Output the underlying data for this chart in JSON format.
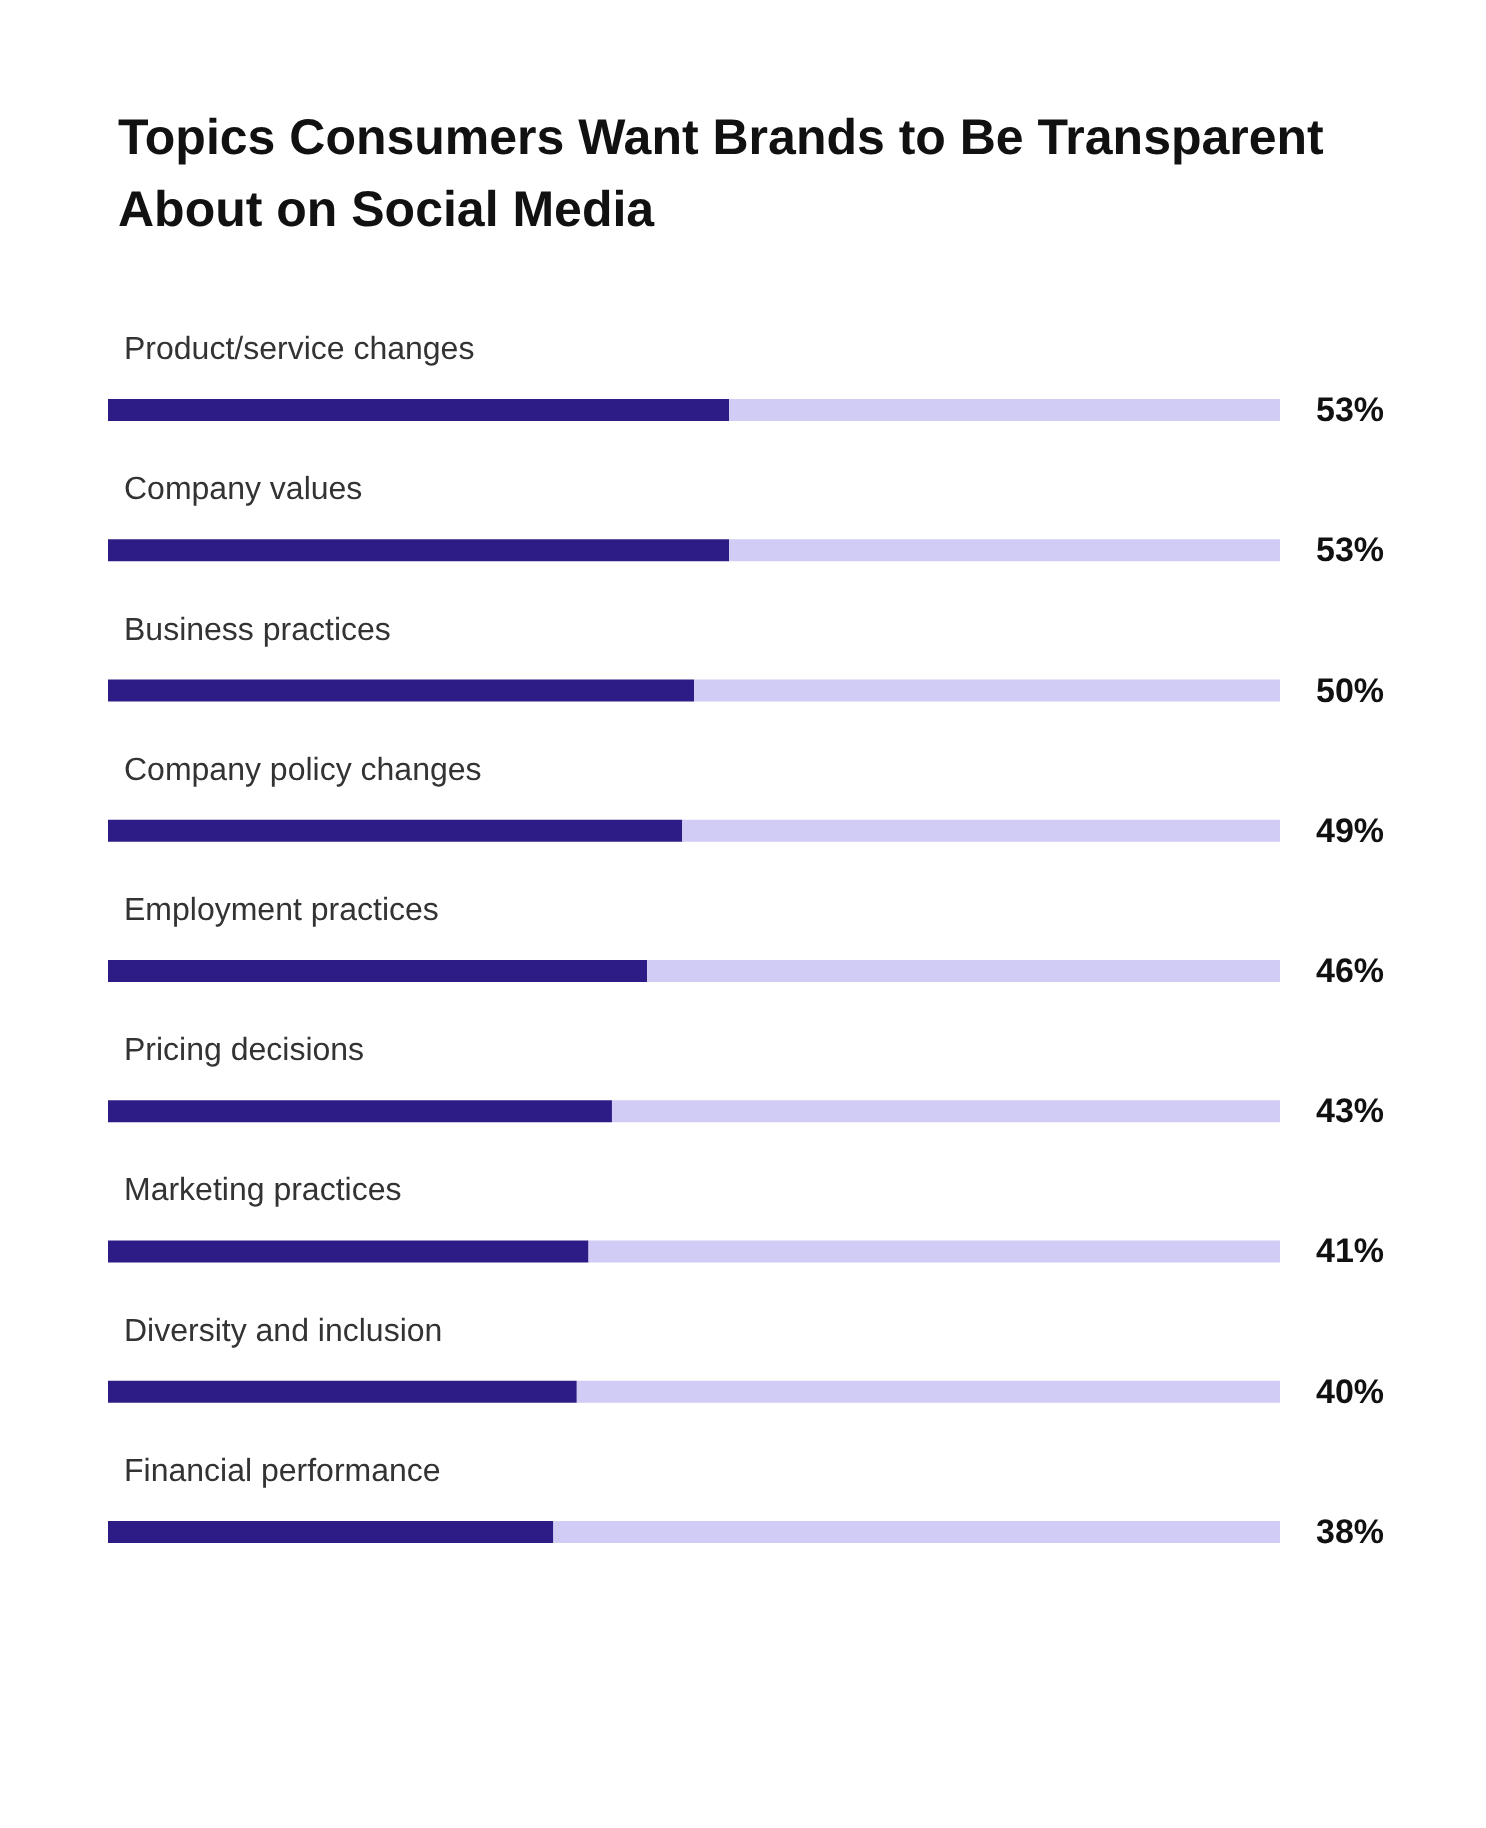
{
  "chart_data": {
    "type": "bar",
    "orientation": "horizontal",
    "title": "Topics Consumers Want Brands to Be Transparent\nAbout on Social Media",
    "categories": [
      "Product/service changes",
      "Company values",
      "Business practices",
      "Company policy changes",
      "Employment practices",
      "Pricing decisions",
      "Marketing practices",
      "Diversity and inclusion",
      "Financial performance"
    ],
    "series": [
      {
        "color": "#2e1c86",
        "values": [
          53,
          53,
          50,
          49,
          46,
          43,
          41,
          40,
          38
        ],
        "value_labels": [
          "53%",
          "53%",
          "50%",
          "49%",
          "46%",
          "43%",
          "41%",
          "40%",
          "38%"
        ]
      },
      {
        "color": "#d0ccf6",
        "values": [
          47,
          47,
          50,
          51,
          54,
          57,
          59,
          60,
          62
        ]
      }
    ],
    "stacked": true,
    "xlim": [
      0,
      100
    ],
    "tick_labels": false
  }
}
